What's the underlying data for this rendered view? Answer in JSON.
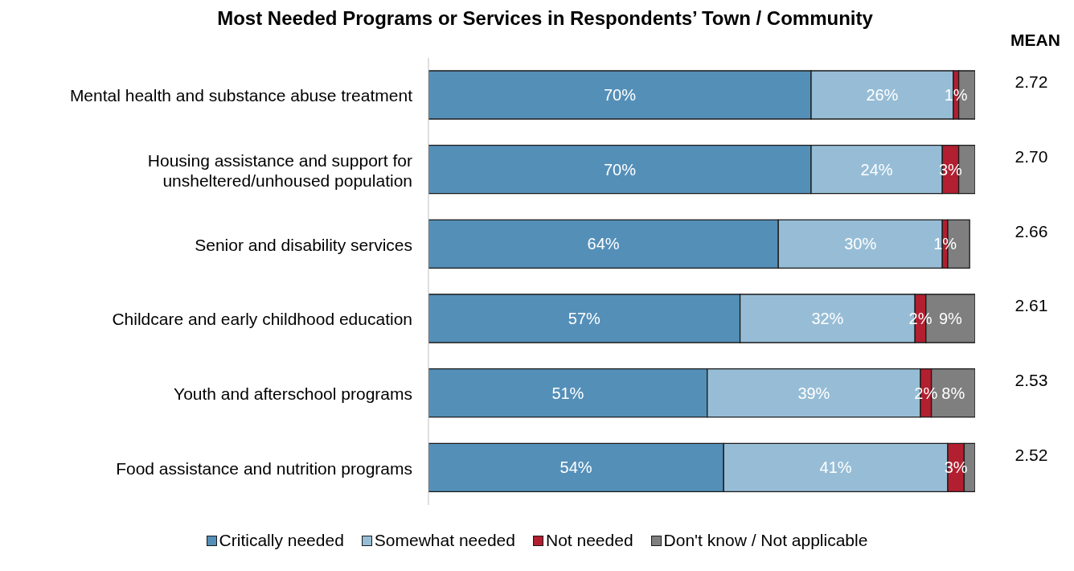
{
  "chart_data": {
    "type": "bar",
    "orientation": "horizontal",
    "stacked": true,
    "title": "Most Needed Programs or Services in Respondents’ Town / Community",
    "categories": [
      "Mental health and substance abuse treatment",
      "Housing assistance and support for unsheltered/unhoused population",
      "Senior and disability services",
      "Childcare and early childhood education",
      "Youth and afterschool programs",
      "Food assistance and nutrition programs"
    ],
    "series": [
      {
        "name": "Critically needed",
        "color": "#548fb8",
        "values": [
          70,
          70,
          64,
          57,
          51,
          54
        ],
        "value_labels": [
          "70%",
          "70%",
          "64%",
          "57%",
          "51%",
          "54%"
        ]
      },
      {
        "name": "Somewhat needed",
        "color": "#97bdd6",
        "values": [
          26,
          24,
          30,
          32,
          39,
          41
        ],
        "value_labels": [
          "26%",
          "24%",
          "30%",
          "32%",
          "39%",
          "41%"
        ]
      },
      {
        "name": "Not needed",
        "color": "#b21f30",
        "values": [
          1,
          3,
          1,
          2,
          2,
          3
        ],
        "value_labels": [
          "1%",
          "3%",
          "1%",
          "2%",
          "2%",
          "3%"
        ]
      },
      {
        "name": "Don't know / Not applicable",
        "color": "#7f7f7f",
        "values": [
          3,
          3,
          4,
          9,
          8,
          2
        ],
        "value_labels": [
          null,
          null,
          null,
          "9%",
          "8%",
          null
        ]
      }
    ],
    "tick_labels": "y",
    "legend": "bottom",
    "annotations": [
      "MEAN",
      "2.72",
      "2.70",
      "2.66",
      "2.61",
      "2.53",
      "2.52"
    ]
  }
}
